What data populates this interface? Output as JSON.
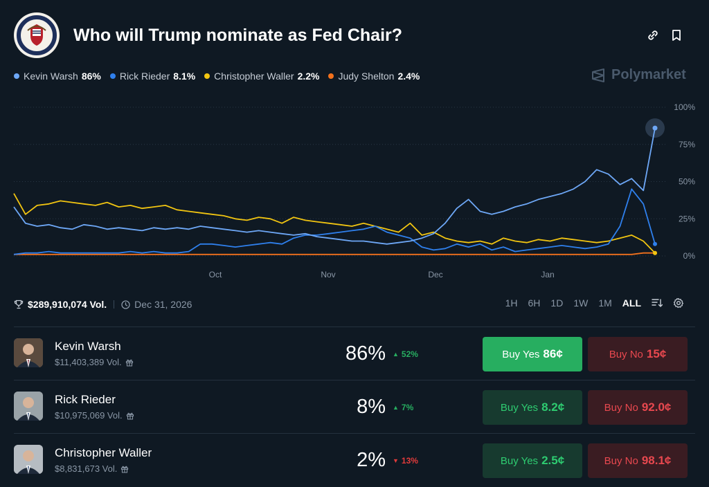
{
  "header": {
    "title": "Who will Trump nominate as Fed Chair?",
    "seal_alt": "Federal Reserve seal"
  },
  "legend": [
    {
      "name": "Kevin Warsh",
      "value": "86%",
      "color": "#6ea8f7"
    },
    {
      "name": "Rick Rieder",
      "value": "8.1%",
      "color": "#2f80ed"
    },
    {
      "name": "Christopher Waller",
      "value": "2.2%",
      "color": "#f2c511"
    },
    {
      "name": "Judy Shelton",
      "value": "2.4%",
      "color": "#f2711c"
    }
  ],
  "brand": {
    "name": "Polymarket"
  },
  "chart_data": {
    "type": "line",
    "x_labels": [
      "Oct",
      "Nov",
      "Dec",
      "Jan"
    ],
    "y_ticks": [
      "100%",
      "75%",
      "50%",
      "25%",
      "0%"
    ],
    "ylim": [
      0,
      100
    ],
    "series": [
      {
        "name": "Kevin Warsh",
        "color": "#6ea8f7",
        "values": [
          33,
          22,
          20,
          21,
          19,
          18,
          21,
          20,
          18,
          19,
          18,
          17,
          19,
          18,
          19,
          18,
          20,
          19,
          18,
          17,
          16,
          17,
          16,
          15,
          14,
          15,
          13,
          12,
          11,
          10,
          10,
          9,
          8,
          9,
          10,
          12,
          15,
          22,
          32,
          38,
          30,
          28,
          30,
          33,
          35,
          38,
          40,
          42,
          45,
          50,
          58,
          55,
          48,
          52,
          44,
          86
        ]
      },
      {
        "name": "Rick Rieder",
        "color": "#2f80ed",
        "values": [
          1,
          2,
          2,
          3,
          2,
          2,
          2,
          2,
          2,
          2,
          3,
          2,
          3,
          2,
          2,
          3,
          8,
          8,
          7,
          6,
          7,
          8,
          9,
          8,
          12,
          14,
          14,
          15,
          16,
          17,
          18,
          20,
          16,
          14,
          12,
          6,
          4,
          5,
          8,
          6,
          8,
          4,
          6,
          3,
          4,
          5,
          6,
          7,
          6,
          5,
          6,
          8,
          20,
          45,
          35,
          8
        ]
      },
      {
        "name": "Christopher Waller",
        "color": "#f2c511",
        "values": [
          42,
          28,
          34,
          35,
          37,
          36,
          35,
          34,
          36,
          33,
          34,
          32,
          33,
          34,
          31,
          30,
          29,
          28,
          27,
          25,
          24,
          26,
          25,
          22,
          26,
          24,
          23,
          22,
          21,
          20,
          22,
          20,
          18,
          16,
          22,
          14,
          16,
          12,
          10,
          9,
          10,
          8,
          12,
          10,
          9,
          11,
          10,
          12,
          11,
          10,
          9,
          10,
          12,
          14,
          10,
          2
        ]
      },
      {
        "name": "Judy Shelton",
        "color": "#f2711c",
        "values": [
          1,
          1,
          1,
          1,
          1,
          1,
          1,
          1,
          1,
          1,
          1,
          1,
          1,
          1,
          1,
          1,
          1,
          1,
          1,
          1,
          1,
          1,
          1,
          1,
          1,
          1,
          1,
          1,
          1,
          1,
          1,
          1,
          1,
          1,
          1,
          1,
          1,
          1,
          1,
          1,
          1,
          1,
          1,
          1,
          1,
          1,
          1,
          1,
          1,
          1,
          1,
          1,
          1,
          1,
          2,
          2
        ]
      }
    ]
  },
  "stats": {
    "volume": "$289,910,074 Vol.",
    "end_date": "Dec 31, 2026",
    "ranges": [
      "1H",
      "6H",
      "1D",
      "1W",
      "1M",
      "ALL"
    ],
    "active_range": "ALL"
  },
  "candidates": [
    {
      "name": "Kevin Warsh",
      "volume": "$11,403,389 Vol.",
      "pct": "86%",
      "change": "52%",
      "direction": "up",
      "buy_yes_label": "Buy Yes",
      "buy_yes_price": "86¢",
      "buy_no_label": "Buy No",
      "buy_no_price": "15¢"
    },
    {
      "name": "Rick Rieder",
      "volume": "$10,975,069 Vol.",
      "pct": "8%",
      "change": "7%",
      "direction": "up",
      "buy_yes_label": "Buy Yes",
      "buy_yes_price": "8.2¢",
      "buy_no_label": "Buy No",
      "buy_no_price": "92.0¢"
    },
    {
      "name": "Christopher Waller",
      "volume": "$8,831,673 Vol.",
      "pct": "2%",
      "change": "13%",
      "direction": "down",
      "buy_yes_label": "Buy Yes",
      "buy_yes_price": "2.5¢",
      "buy_no_label": "Buy No",
      "buy_no_price": "98.1¢"
    }
  ]
}
